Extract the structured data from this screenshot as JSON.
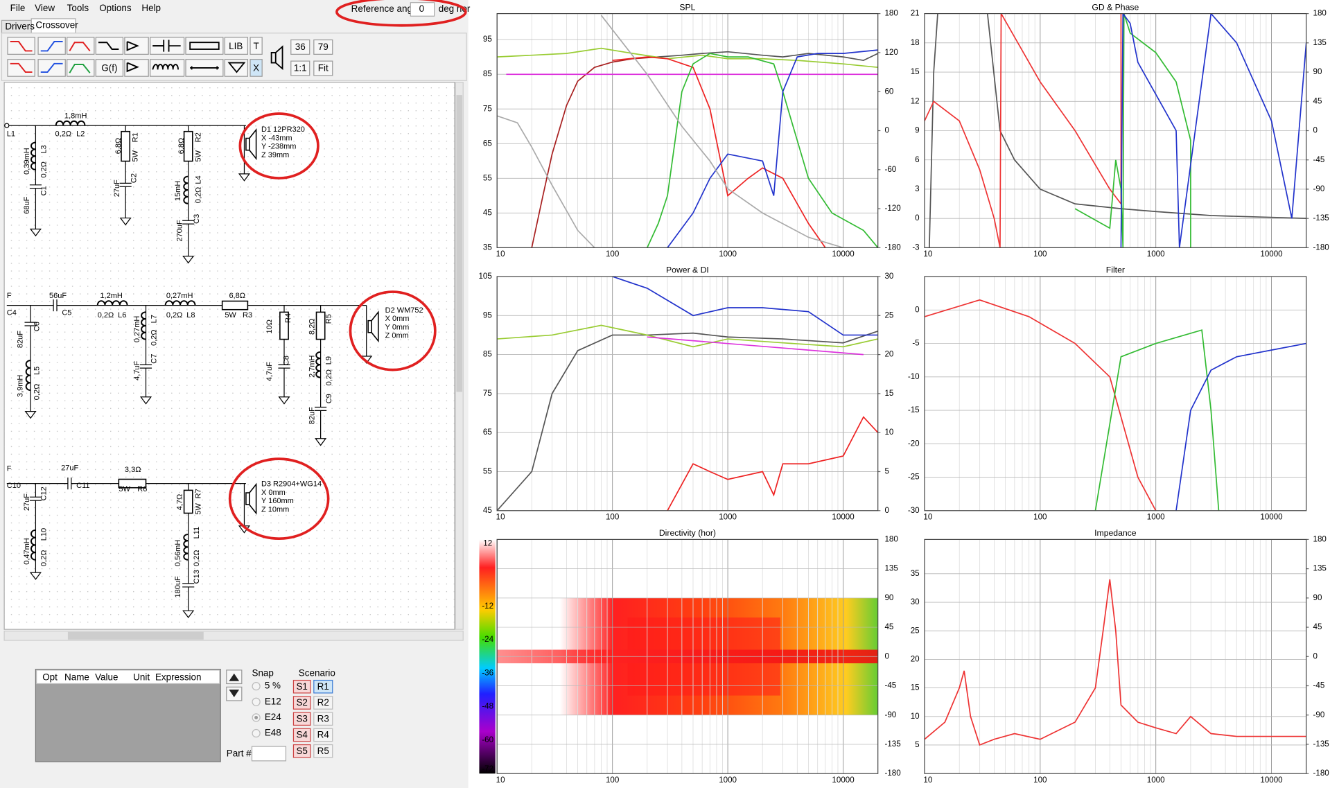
{
  "menu": [
    "File",
    "View",
    "Tools",
    "Options",
    "Help"
  ],
  "reference_angle": {
    "label": "Reference angle",
    "value": "0",
    "unit": "deg hor"
  },
  "tabs": [
    "Drivers",
    "Crossover"
  ],
  "toolbar": {
    "buttons": [
      "LIB",
      "T",
      "G(f)",
      "X",
      "1:1",
      "Fit"
    ],
    "values": [
      "36",
      "79"
    ]
  },
  "schematic": {
    "labels": [
      "1,8mH",
      "0,2Ω",
      "L2",
      "L1",
      "0,39mH",
      "0,2Ω",
      "L3",
      "68uF",
      "C1",
      "6,8Ω",
      "R1",
      "5W",
      "27uF",
      "C2",
      "6,8Ω",
      "R2",
      "5W",
      "15mH",
      "0,2Ω",
      "L4",
      "270uF",
      "C3",
      "D1 12PR320",
      "X -43mm",
      "Y -238mm",
      "Z 39mm",
      "F",
      "C4",
      "56uF",
      "C5",
      "1,2mH",
      "0,2Ω",
      "L6",
      "0,27mH",
      "0,2Ω",
      "L8",
      "6,8Ω",
      "5W",
      "R3",
      "82uF",
      "C6",
      "3,9mH",
      "0,2Ω",
      "L5",
      "0,27mH",
      "0,2Ω",
      "L7",
      "4,7uF",
      "C7",
      "10Ω",
      "R4",
      "4,7uF",
      "C8",
      "8,2Ω",
      "R5",
      "2,7mH",
      "0,2Ω",
      "L9",
      "82uF",
      "C9",
      "D2 WM752",
      "X 0mm",
      "Y 0mm",
      "Z 0mm",
      "F",
      "C10",
      "27uF",
      "C11",
      "3,3Ω",
      "5W",
      "R6",
      "27uF",
      "C12",
      "0,47mH",
      "0,2Ω",
      "L10",
      "4,7Ω",
      "5W",
      "R7",
      "0,56mH",
      "0,2Ω",
      "L11",
      "180uF",
      "C13",
      "D3 R2904+WG14",
      "X 0mm",
      "Y 160mm",
      "Z 10mm"
    ]
  },
  "parameter_table": {
    "columns": [
      "Opt",
      "Name",
      "Value",
      "Unit",
      "Expression"
    ]
  },
  "snap": {
    "title": "Snap",
    "options": [
      "5 %",
      "E12",
      "E24",
      "E48"
    ],
    "selected": 2
  },
  "scenario": {
    "title": "Scenario",
    "s": [
      "S1",
      "S2",
      "S3",
      "S4",
      "S5"
    ],
    "r": [
      "R1",
      "R2",
      "R3",
      "R4",
      "R5"
    ]
  },
  "part_label": "Part #",
  "chart_data": [
    {
      "type": "line",
      "title": "SPL",
      "log_x": true,
      "grid": true,
      "xlim": [
        10,
        20000
      ],
      "xticks": [
        10,
        100,
        1000,
        10000
      ],
      "ylim": [
        35,
        102.5
      ],
      "yticks": [
        35,
        45,
        55,
        65,
        75,
        85,
        95
      ],
      "y2lim": [
        -180,
        180
      ],
      "y2ticks": [
        180,
        120,
        60,
        0,
        -60,
        -120,
        -180
      ],
      "series": [
        {
          "color": "#a82020",
          "x": [
            20,
            25,
            30,
            40,
            50,
            70,
            100,
            150,
            250
          ],
          "values": [
            35,
            50,
            62,
            76,
            83,
            87,
            88.5,
            89.5,
            90
          ]
        },
        {
          "color": "#555555",
          "x": [
            250,
            400,
            600,
            1000,
            2000,
            3000,
            5000,
            10000,
            15000,
            20000
          ],
          "values": [
            90,
            90.5,
            91,
            91.5,
            90.5,
            90,
            91,
            90,
            89,
            91
          ]
        },
        {
          "color": "#99cc33",
          "x": [
            10,
            20,
            40,
            80,
            150,
            300,
            600,
            1000,
            2000,
            4000,
            10000,
            20000
          ],
          "values": [
            90,
            90.5,
            91,
            92.5,
            91,
            89.5,
            90.5,
            89.5,
            89.5,
            89,
            88,
            87
          ]
        },
        {
          "color": "#dd33dd",
          "x": [
            12,
            20000
          ],
          "values": [
            85,
            85
          ]
        },
        {
          "color": "#ee2222",
          "x": [
            100,
            200,
            300,
            500,
            700,
            1000,
            1500,
            2000,
            3000,
            5000,
            7000
          ],
          "values": [
            89,
            90,
            89.5,
            87,
            75,
            50,
            55,
            58,
            55,
            42,
            35
          ]
        },
        {
          "color": "#33bb33",
          "x": [
            200,
            250,
            300,
            400,
            500,
            700,
            1000,
            1500,
            2500,
            3000,
            5000,
            8000,
            15000,
            20000
          ],
          "values": [
            35,
            42,
            50,
            80,
            88,
            91,
            90,
            90,
            88,
            80,
            55,
            45,
            40,
            35
          ]
        },
        {
          "color": "#2233cc",
          "x": [
            300,
            500,
            700,
            1000,
            2000,
            2500,
            3000,
            4000,
            6000,
            10000,
            20000
          ],
          "values": [
            35,
            45,
            55,
            62,
            60,
            50,
            80,
            90,
            91,
            91,
            92
          ]
        },
        {
          "color": "#aaaaaa",
          "x": [
            10,
            15,
            20,
            30,
            50,
            70
          ],
          "values": [
            73,
            71,
            64,
            53,
            40,
            35
          ]
        },
        {
          "color": "#aaaaaa",
          "x": [
            80,
            200,
            400,
            700,
            1000,
            2000,
            5000,
            10000
          ],
          "values": [
            102,
            85,
            70,
            60,
            52,
            45,
            38,
            35
          ]
        }
      ]
    },
    {
      "type": "line",
      "title": "GD & Phase",
      "log_x": true,
      "grid": true,
      "xlim": [
        10,
        20000
      ],
      "xticks": [
        10,
        100,
        1000,
        10000
      ],
      "ylim": [
        -3,
        21
      ],
      "yticks": [
        -3,
        0,
        3,
        6,
        9,
        12,
        15,
        18,
        21
      ],
      "y2lim": [
        -180,
        180
      ],
      "y2ticks": [
        180,
        135,
        90,
        45,
        0,
        -45,
        -90,
        -135,
        -180
      ],
      "series": [
        {
          "color": "#555555",
          "x": [
            11,
            12,
            13,
            20,
            35,
            45,
            60,
            100,
            200,
            500,
            1000,
            3000,
            20000
          ],
          "values": [
            -3,
            15,
            21,
            null,
            21,
            9,
            6,
            3,
            1.5,
            1,
            0.7,
            0.3,
            0
          ]
        },
        {
          "color": "#ee3333",
          "x": [
            10,
            12,
            20,
            30,
            40,
            45
          ],
          "values": [
            10,
            12,
            10,
            5,
            0,
            -3
          ]
        },
        {
          "color": "#ee3333",
          "x": [
            45,
            46,
            100,
            200,
            400,
            500,
            500
          ],
          "values": [
            -3,
            21,
            14,
            9,
            3,
            1.5,
            21
          ]
        },
        {
          "color": "#33bb33",
          "x": [
            200,
            400,
            450,
            500,
            520,
            530,
            600,
            1000,
            1500,
            2000,
            2000
          ],
          "values": [
            1,
            -1,
            6,
            3,
            -3,
            21,
            19,
            17,
            14,
            8,
            -3
          ]
        },
        {
          "color": "#2233cc",
          "x": [
            500,
            520,
            600,
            700,
            1500,
            1600,
            3000,
            5000,
            10000,
            15000,
            20000
          ],
          "values": [
            -3,
            21,
            20,
            16,
            9,
            -3,
            21,
            18,
            10,
            0,
            18
          ]
        }
      ]
    },
    {
      "type": "line",
      "title": "Power & DI",
      "log_x": true,
      "grid": true,
      "xlim": [
        10,
        20000
      ],
      "xticks": [
        10,
        100,
        1000,
        10000
      ],
      "ylim": [
        45,
        105
      ],
      "yticks": [
        45,
        55,
        65,
        75,
        85,
        95,
        105
      ],
      "y2lim": [
        0,
        30
      ],
      "y2ticks": [
        30,
        25,
        20,
        15,
        10,
        5,
        0
      ],
      "series": [
        {
          "color": "#555555",
          "x": [
            10,
            20,
            30,
            50,
            100,
            200,
            500,
            1000,
            3000,
            10000,
            20000
          ],
          "values": [
            45,
            55,
            75,
            86,
            90,
            90,
            90.5,
            89.5,
            89,
            88,
            91
          ]
        },
        {
          "color": "#99cc33",
          "x": [
            10,
            30,
            80,
            200,
            500,
            1000,
            3000,
            10000,
            20000
          ],
          "values": [
            89,
            90,
            92.5,
            90,
            87,
            89,
            88,
            87,
            89
          ]
        },
        {
          "color": "#dd33dd",
          "x": [
            200,
            15000
          ],
          "values": [
            89.5,
            85
          ]
        },
        {
          "color": "#2233cc",
          "axis": "y2",
          "x": [
            100,
            200,
            500,
            1000,
            2000,
            5000,
            10000,
            20000
          ],
          "values": [
            30,
            28.5,
            25,
            26,
            26,
            25.5,
            22.5,
            22.5
          ]
        },
        {
          "color": "#ee2222",
          "axis": "y2",
          "x": [
            300,
            500,
            700,
            1000,
            2000,
            2500,
            3000,
            5000,
            10000,
            15000,
            20000
          ],
          "values": [
            0,
            6,
            5,
            4,
            5,
            2,
            6,
            6,
            7,
            12,
            10
          ]
        }
      ]
    },
    {
      "type": "line",
      "title": "Filter",
      "log_x": true,
      "grid": true,
      "xlim": [
        10,
        20000
      ],
      "xticks": [
        10,
        100,
        1000,
        10000
      ],
      "ylim": [
        -30,
        5
      ],
      "yticks": [
        0,
        -5,
        -10,
        -15,
        -20,
        -25,
        -30
      ],
      "series": [
        {
          "color": "#ee3333",
          "x": [
            10,
            30,
            80,
            200,
            400,
            700,
            1000
          ],
          "values": [
            -1,
            1.5,
            -1,
            -5,
            -10,
            -25,
            -30
          ]
        },
        {
          "color": "#33bb33",
          "x": [
            300,
            500,
            1000,
            2500,
            3000,
            3500
          ],
          "values": [
            -30,
            -7,
            -5,
            -3,
            -15,
            -30
          ]
        },
        {
          "color": "#2233cc",
          "x": [
            1500,
            2000,
            3000,
            5000,
            10000,
            20000
          ],
          "values": [
            -30,
            -15,
            -9,
            -7,
            -6,
            -5
          ]
        }
      ]
    },
    {
      "type": "heatmap",
      "title": "Directivity (hor)",
      "log_x": true,
      "grid": true,
      "xlim": [
        10,
        20000
      ],
      "xticks": [
        10,
        100,
        1000,
        10000
      ],
      "y2lim": [
        -180,
        180
      ],
      "y2ticks": [
        180,
        135,
        90,
        45,
        0,
        -45,
        -90,
        -135,
        -180
      ],
      "colorbar": {
        "lim": [
          -72,
          12
        ],
        "ticks": [
          12,
          -12,
          -24,
          -36,
          -48,
          -60,
          -72
        ]
      }
    },
    {
      "type": "line",
      "title": "Impedance",
      "log_x": true,
      "grid": true,
      "xlim": [
        10,
        20000
      ],
      "xticks": [
        10,
        100,
        1000,
        10000
      ],
      "ylim": [
        0,
        41
      ],
      "yticks": [
        5,
        10,
        15,
        20,
        25,
        30,
        35
      ],
      "y2lim": [
        -180,
        180
      ],
      "y2ticks": [
        180,
        135,
        90,
        45,
        0,
        -45,
        -90,
        -135,
        -180
      ],
      "series": [
        {
          "color": "#ee3333",
          "x": [
            10,
            15,
            20,
            22,
            25,
            30,
            40,
            60,
            100,
            200,
            300,
            350,
            400,
            450,
            500,
            700,
            1000,
            1500,
            2000,
            3000,
            5000,
            20000
          ],
          "values": [
            6,
            9,
            15,
            18,
            10,
            5,
            6,
            7,
            6,
            9,
            15,
            25,
            34,
            25,
            12,
            9,
            8,
            7,
            10,
            7,
            6.5,
            6.5
          ]
        }
      ]
    }
  ]
}
